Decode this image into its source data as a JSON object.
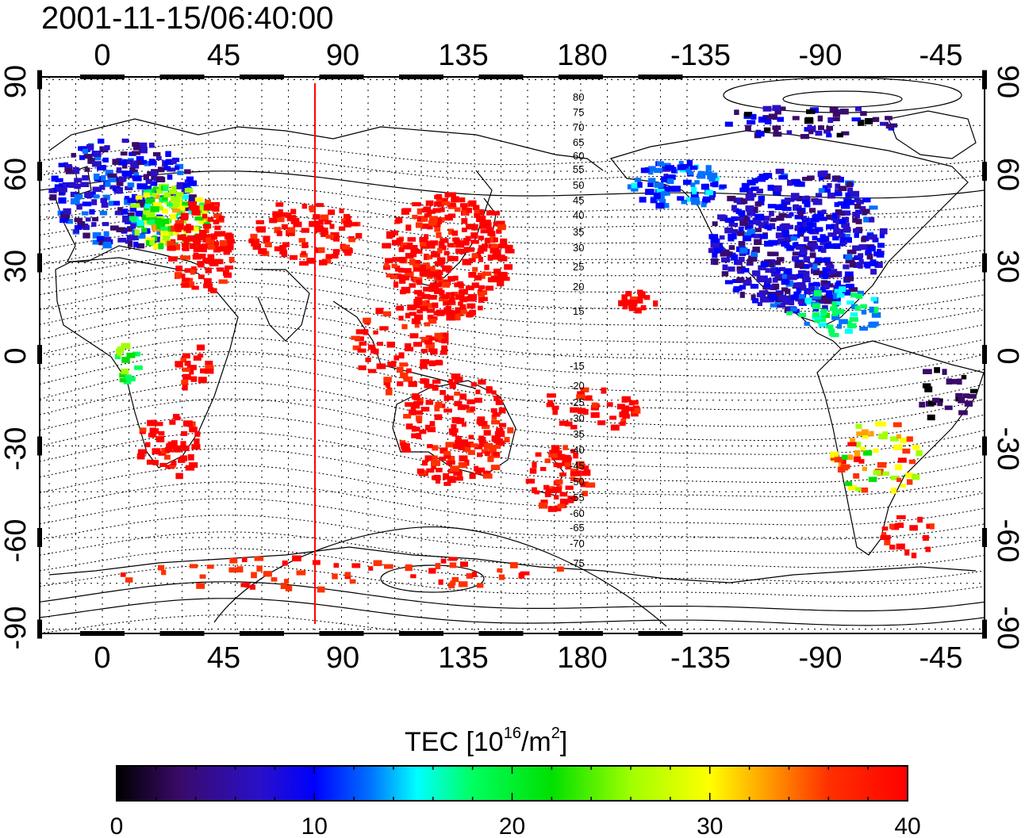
{
  "title": "2001-11-15/06:40:00",
  "map": {
    "lon_ticks_top": [
      "0",
      "45",
      "90",
      "135",
      "180",
      "-135",
      "-90",
      "-45"
    ],
    "lon_ticks_bottom": [
      "0",
      "45",
      "90",
      "135",
      "180",
      "-135",
      "-90",
      "-45"
    ],
    "lat_ticks_left": [
      "90",
      "60",
      "30",
      "0",
      "-30",
      "-60",
      "-90"
    ],
    "lat_ticks_right": [
      "90",
      "60",
      "30",
      "0",
      "-30",
      "-60",
      "-90"
    ],
    "geomag_lat_labels_north": [
      "80",
      "75",
      "70",
      "65",
      "60",
      "55",
      "50",
      "45",
      "40",
      "35",
      "30",
      "25",
      "20",
      "15"
    ],
    "geomag_lat_labels_south": [
      "-15",
      "-20",
      "-25",
      "-30",
      "-35",
      "-40",
      "-45",
      "-50",
      "-55",
      "-60",
      "-65",
      "-70",
      "-75"
    ],
    "terminator_line_lon": 80,
    "colors": {
      "terminator": "#ff0000",
      "frame": "#000000"
    }
  },
  "colorbar": {
    "label": "TEC  [10",
    "label_sup1": "16",
    "label_mid": "/m",
    "label_sup2": "2",
    "label_end": "]",
    "ticks": [
      "0",
      "10",
      "20",
      "30",
      "40"
    ],
    "range": [
      0,
      40
    ],
    "colormap": [
      "#000000",
      "#3a0a6a",
      "#2a10c8",
      "#0000ff",
      "#0070ff",
      "#00ffff",
      "#00ff60",
      "#00e000",
      "#a0ff00",
      "#ffff00",
      "#ffa000",
      "#ff3000",
      "#ff0000"
    ]
  }
}
